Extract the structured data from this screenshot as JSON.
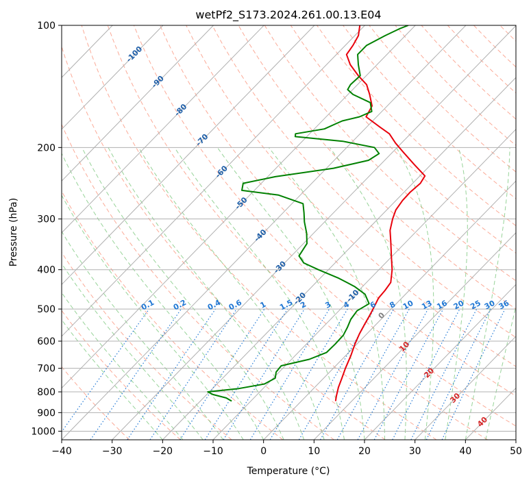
{
  "chart_data": {
    "type": "line",
    "subtype": "skew-t log-p",
    "title": "wetPf2_S173.2024.261.00.13.E04",
    "xlabel": "Temperature (°C)",
    "ylabel": "Pressure (hPa)",
    "xlim": [
      -40,
      50
    ],
    "ylim": [
      1050,
      100
    ],
    "y_scale": "log",
    "grid": true,
    "x_ticks": [
      -40,
      -30,
      -20,
      -10,
      0,
      10,
      20,
      30,
      40,
      50
    ],
    "y_ticks": [
      100,
      200,
      300,
      400,
      500,
      600,
      700,
      800,
      900,
      1000
    ],
    "skew_isotherm_labels": [
      "-100",
      "-90",
      "-80",
      "-70",
      "-60",
      "-50",
      "-40",
      "-30",
      "-20",
      "-10",
      "0",
      "10",
      "20",
      "30",
      "40"
    ],
    "mixing_ratio_labels": [
      "0.1",
      "0.2",
      "0.4",
      "0.6",
      "1",
      "1.5",
      "2",
      "3",
      "4",
      "6",
      "8",
      "10",
      "13",
      "16",
      "20",
      "25",
      "30",
      "36"
    ],
    "colors": {
      "temperature": "#e8000b",
      "dewpoint": "#008000",
      "dry_adiabat": "#fa8e74",
      "moist_adiabat": "#74c476",
      "mixing_ratio": "#1f77d4",
      "isotherm_cold_label": "#1f5fa8",
      "isotherm_warm_label": "#d62728",
      "grid": "#b0b0b0"
    },
    "series": [
      {
        "key": "temperature",
        "points": [
          [
            843,
            6.8
          ],
          [
            820,
            6.0
          ],
          [
            780,
            4.7
          ],
          [
            740,
            3.6
          ],
          [
            700,
            2.4
          ],
          [
            650,
            1.0
          ],
          [
            610,
            -0.4
          ],
          [
            575,
            -1.5
          ],
          [
            545,
            -2.3
          ],
          [
            515,
            -3.1
          ],
          [
            490,
            -3.9
          ],
          [
            470,
            -4.6
          ],
          [
            450,
            -4.8
          ],
          [
            430,
            -5.2
          ],
          [
            400,
            -7.4
          ],
          [
            370,
            -10.2
          ],
          [
            340,
            -13.2
          ],
          [
            320,
            -15.4
          ],
          [
            300,
            -17.1
          ],
          [
            285,
            -18.2
          ],
          [
            270,
            -18.7
          ],
          [
            258,
            -18.8
          ],
          [
            245,
            -18.5
          ],
          [
            235,
            -19.0
          ],
          [
            220,
            -23.4
          ],
          [
            205,
            -28.0
          ],
          [
            195,
            -31.2
          ],
          [
            185,
            -34.2
          ],
          [
            178,
            -37.4
          ],
          [
            168,
            -42.1
          ],
          [
            158,
            -43.0
          ],
          [
            148,
            -45.7
          ],
          [
            140,
            -48.2
          ],
          [
            133,
            -51.6
          ],
          [
            125,
            -55.3
          ],
          [
            118,
            -58.0
          ],
          [
            112,
            -58.5
          ],
          [
            106,
            -59.3
          ],
          [
            100,
            -61.0
          ]
        ]
      },
      {
        "key": "dewpoint",
        "points": [
          [
            843,
            -13.8
          ],
          [
            828,
            -15.5
          ],
          [
            812,
            -18.8
          ],
          [
            800,
            -20.3
          ],
          [
            785,
            -14.8
          ],
          [
            765,
            -10.6
          ],
          [
            740,
            -9.6
          ],
          [
            715,
            -10.6
          ],
          [
            690,
            -10.8
          ],
          [
            665,
            -6.5
          ],
          [
            640,
            -4.4
          ],
          [
            610,
            -4.3
          ],
          [
            580,
            -4.4
          ],
          [
            555,
            -5.1
          ],
          [
            530,
            -6.0
          ],
          [
            505,
            -6.4
          ],
          [
            485,
            -5.4
          ],
          [
            460,
            -8.0
          ],
          [
            440,
            -11.6
          ],
          [
            420,
            -16.3
          ],
          [
            400,
            -22.0
          ],
          [
            385,
            -26.2
          ],
          [
            370,
            -28.5
          ],
          [
            345,
            -29.3
          ],
          [
            325,
            -31.4
          ],
          [
            305,
            -34.0
          ],
          [
            290,
            -35.8
          ],
          [
            275,
            -37.8
          ],
          [
            262,
            -44.3
          ],
          [
            255,
            -52.5
          ],
          [
            245,
            -53.6
          ],
          [
            236,
            -48.5
          ],
          [
            225,
            -38.6
          ],
          [
            215,
            -33.2
          ],
          [
            207,
            -32.4
          ],
          [
            200,
            -34.5
          ],
          [
            193,
            -42.0
          ],
          [
            188,
            -52.3
          ],
          [
            185,
            -52.8
          ],
          [
            180,
            -48.0
          ],
          [
            175,
            -46.8
          ],
          [
            172,
            -46.0
          ],
          [
            168,
            -43.4
          ],
          [
            163,
            -42.0
          ],
          [
            155,
            -44.0
          ],
          [
            148,
            -49.0
          ],
          [
            144,
            -51.0
          ],
          [
            140,
            -51.4
          ],
          [
            133,
            -51.2
          ],
          [
            125,
            -53.7
          ],
          [
            118,
            -55.8
          ],
          [
            112,
            -55.8
          ],
          [
            106,
            -54.0
          ],
          [
            102,
            -52.5
          ],
          [
            100,
            -51.4
          ]
        ]
      }
    ]
  }
}
